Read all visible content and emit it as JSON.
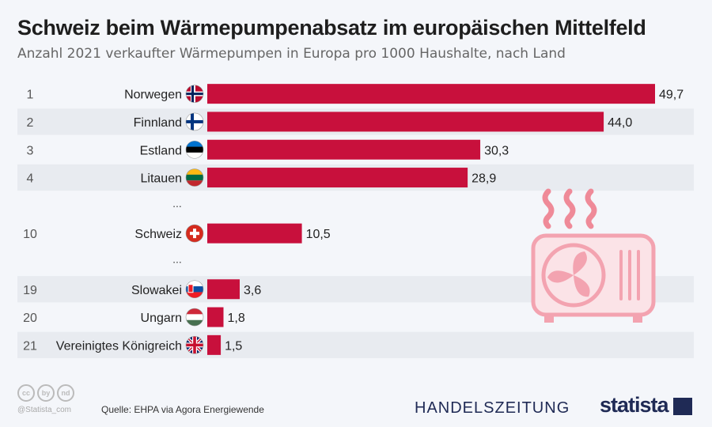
{
  "title": "Schweiz beim Wärmepumpenabsatz im europäischen Mittelfeld",
  "subtitle": "Anzahl 2021 verkaufter Wärmepumpen in Europa pro 1000 Haushalte, nach Land",
  "footer": {
    "handle": "@Statista_com",
    "source": "Quelle: EHPA via Agora Energiewende",
    "brand1": "HANDELSZEITUNG",
    "brand2": "statista",
    "cc_icons": [
      "cc",
      "by",
      "nd"
    ]
  },
  "colors": {
    "bar": "#c8103c",
    "stripe": "#e8ebf0"
  },
  "chart_data": {
    "type": "bar",
    "orientation": "horizontal",
    "rows": [
      {
        "rank": "1",
        "country": "Norwegen",
        "value": 49.7,
        "label": "49,7",
        "flag": "norway"
      },
      {
        "rank": "2",
        "country": "Finnland",
        "value": 44.0,
        "label": "44,0",
        "flag": "finland"
      },
      {
        "rank": "3",
        "country": "Estland",
        "value": 30.3,
        "label": "30,3",
        "flag": "estonia"
      },
      {
        "rank": "4",
        "country": "Litauen",
        "value": 28.9,
        "label": "28,9",
        "flag": "lithuania"
      },
      {
        "gap": "..."
      },
      {
        "rank": "10",
        "country": "Schweiz",
        "value": 10.5,
        "label": "10,5",
        "flag": "switzerland"
      },
      {
        "gap": "..."
      },
      {
        "rank": "19",
        "country": "Slowakei",
        "value": 3.6,
        "label": "3,6",
        "flag": "slovakia"
      },
      {
        "rank": "20",
        "country": "Ungarn",
        "value": 1.8,
        "label": "1,8",
        "flag": "hungary"
      },
      {
        "rank": "21",
        "country": "Vereinigtes Königreich",
        "value": 1.5,
        "label": "1,5",
        "flag": "uk"
      }
    ]
  }
}
